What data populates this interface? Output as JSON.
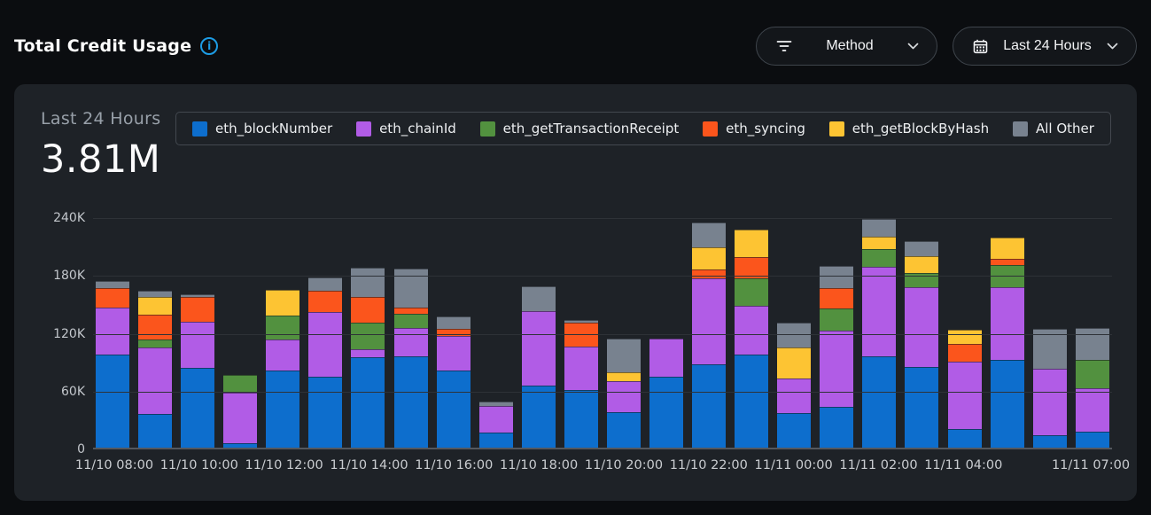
{
  "header": {
    "title": "Total Credit Usage"
  },
  "filters": {
    "method": {
      "label": "Method"
    },
    "date_range": {
      "label": "Last 24 Hours"
    }
  },
  "summary": {
    "period": "Last 24 Hours",
    "total": "3.81M"
  },
  "chart_data": {
    "type": "bar",
    "stacked": true,
    "title": "Total Credit Usage",
    "subtitle": "Last 24 Hours",
    "total_label": "3.81M",
    "values_unit": "thousands of credits (K)",
    "ylim_k": [
      0,
      240
    ],
    "grid": true,
    "legend_position": "top",
    "yticks": [
      {
        "label": "240K",
        "value_k": 240
      },
      {
        "label": "180K",
        "value_k": 180
      },
      {
        "label": "120K",
        "value_k": 120
      },
      {
        "label": "60K",
        "value_k": 60
      },
      {
        "label": "0",
        "value_k": 0
      }
    ],
    "series": [
      {
        "name": "eth_blockNumber",
        "color": "#0d6ecd"
      },
      {
        "name": "eth_chainId",
        "color": "#b15ce6"
      },
      {
        "name": "eth_getTransactionReceipt",
        "color": "#52913f"
      },
      {
        "name": "eth_syncing",
        "color": "#fb551c"
      },
      {
        "name": "eth_getBlockByHash",
        "color": "#fdc433"
      },
      {
        "name": "All Other",
        "color": "#78828f"
      }
    ],
    "bars": [
      {
        "tick": "11/10 08:00",
        "values_k": [
          97,
          48,
          0,
          21,
          0,
          7
        ]
      },
      {
        "tick": "",
        "values_k": [
          35,
          69,
          8,
          26,
          18,
          7
        ]
      },
      {
        "tick": "11/10 10:00",
        "values_k": [
          83,
          48,
          0,
          25,
          0,
          3
        ]
      },
      {
        "tick": "",
        "values_k": [
          5,
          52,
          18,
          0,
          0,
          0
        ]
      },
      {
        "tick": "11/10 12:00",
        "values_k": [
          80,
          32,
          25,
          0,
          27,
          0
        ]
      },
      {
        "tick": "",
        "values_k": [
          74,
          67,
          0,
          22,
          0,
          14
        ]
      },
      {
        "tick": "11/10 14:00",
        "values_k": [
          94,
          8,
          28,
          26,
          0,
          31
        ]
      },
      {
        "tick": "",
        "values_k": [
          95,
          29,
          15,
          6,
          0,
          41
        ]
      },
      {
        "tick": "11/10 16:00",
        "values_k": [
          80,
          36,
          0,
          7,
          0,
          13
        ]
      },
      {
        "tick": "",
        "values_k": [
          16,
          27,
          0,
          0,
          0,
          5
        ]
      },
      {
        "tick": "11/10 18:00",
        "values_k": [
          64,
          78,
          0,
          0,
          0,
          25
        ]
      },
      {
        "tick": "",
        "values_k": [
          60,
          45,
          0,
          25,
          0,
          2
        ]
      },
      {
        "tick": "11/10 20:00",
        "values_k": [
          37,
          32,
          0,
          0,
          9,
          35
        ]
      },
      {
        "tick": "",
        "values_k": [
          74,
          39,
          0,
          0,
          0,
          0
        ]
      },
      {
        "tick": "11/10 22:00",
        "values_k": [
          86,
          90,
          0,
          9,
          23,
          26
        ]
      },
      {
        "tick": "",
        "values_k": [
          97,
          50,
          29,
          22,
          28,
          0
        ]
      },
      {
        "tick": "11/11 00:00",
        "values_k": [
          36,
          36,
          0,
          0,
          32,
          26
        ]
      },
      {
        "tick": "",
        "values_k": [
          42,
          79,
          23,
          22,
          0,
          23
        ]
      },
      {
        "tick": "11/11 02:00",
        "values_k": [
          95,
          93,
          18,
          0,
          13,
          18
        ]
      },
      {
        "tick": "",
        "values_k": [
          84,
          82,
          15,
          0,
          18,
          15
        ]
      },
      {
        "tick": "11/11 04:00",
        "values_k": [
          19,
          70,
          0,
          19,
          14,
          0
        ]
      },
      {
        "tick": "",
        "values_k": [
          91,
          75,
          23,
          7,
          22,
          0
        ]
      },
      {
        "tick": "",
        "values_k": [
          13,
          69,
          0,
          0,
          0,
          41
        ]
      },
      {
        "tick": "11/11 07:00",
        "values_k": [
          17,
          45,
          29,
          0,
          0,
          33
        ]
      }
    ]
  }
}
